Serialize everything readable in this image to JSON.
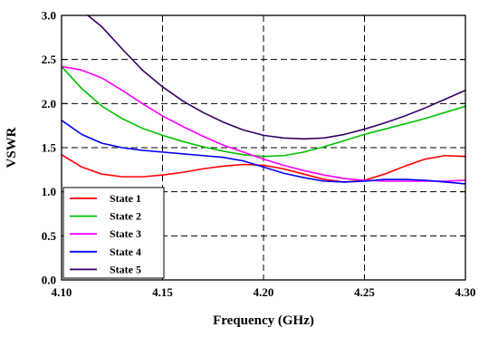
{
  "chart_data": {
    "type": "line",
    "title": "",
    "xlabel": "Frequency (GHz)",
    "ylabel": "VSWR",
    "xlim": [
      4.1,
      4.3
    ],
    "ylim": [
      0.0,
      3.0
    ],
    "x_ticks": [
      "4.10",
      "4.15",
      "4.20",
      "4.25",
      "4.30"
    ],
    "y_ticks": [
      "0.0",
      "0.5",
      "1.0",
      "1.5",
      "2.0",
      "2.5",
      "3.0"
    ],
    "grid": true,
    "legend_position": "bottom-left",
    "series": [
      {
        "name": "State 1",
        "color": "#ff0000",
        "points": [
          [
            4.1,
            1.42
          ],
          [
            4.11,
            1.28
          ],
          [
            4.12,
            1.2
          ],
          [
            4.13,
            1.17
          ],
          [
            4.14,
            1.17
          ],
          [
            4.15,
            1.19
          ],
          [
            4.16,
            1.22
          ],
          [
            4.17,
            1.26
          ],
          [
            4.18,
            1.29
          ],
          [
            4.19,
            1.31
          ],
          [
            4.2,
            1.3
          ],
          [
            4.21,
            1.26
          ],
          [
            4.22,
            1.2
          ],
          [
            4.23,
            1.14
          ],
          [
            4.24,
            1.11
          ],
          [
            4.25,
            1.13
          ],
          [
            4.26,
            1.2
          ],
          [
            4.27,
            1.29
          ],
          [
            4.28,
            1.37
          ],
          [
            4.29,
            1.41
          ],
          [
            4.3,
            1.4
          ]
        ]
      },
      {
        "name": "State 2",
        "color": "#00c000",
        "points": [
          [
            4.1,
            2.42
          ],
          [
            4.11,
            2.17
          ],
          [
            4.12,
            1.97
          ],
          [
            4.13,
            1.83
          ],
          [
            4.14,
            1.72
          ],
          [
            4.15,
            1.64
          ],
          [
            4.16,
            1.57
          ],
          [
            4.17,
            1.51
          ],
          [
            4.18,
            1.46
          ],
          [
            4.19,
            1.42
          ],
          [
            4.2,
            1.4
          ],
          [
            4.21,
            1.41
          ],
          [
            4.22,
            1.45
          ],
          [
            4.23,
            1.51
          ],
          [
            4.24,
            1.58
          ],
          [
            4.25,
            1.65
          ],
          [
            4.26,
            1.71
          ],
          [
            4.27,
            1.77
          ],
          [
            4.28,
            1.83
          ],
          [
            4.29,
            1.9
          ],
          [
            4.3,
            1.97
          ]
        ]
      },
      {
        "name": "State 3",
        "color": "#ff00ff",
        "points": [
          [
            4.1,
            2.42
          ],
          [
            4.11,
            2.38
          ],
          [
            4.12,
            2.29
          ],
          [
            4.13,
            2.15
          ],
          [
            4.14,
            2.0
          ],
          [
            4.15,
            1.86
          ],
          [
            4.16,
            1.74
          ],
          [
            4.17,
            1.63
          ],
          [
            4.18,
            1.53
          ],
          [
            4.19,
            1.45
          ],
          [
            4.2,
            1.37
          ],
          [
            4.21,
            1.3
          ],
          [
            4.22,
            1.24
          ],
          [
            4.23,
            1.19
          ],
          [
            4.24,
            1.15
          ],
          [
            4.25,
            1.13
          ],
          [
            4.26,
            1.12
          ],
          [
            4.27,
            1.12
          ],
          [
            4.28,
            1.12
          ],
          [
            4.29,
            1.12
          ],
          [
            4.3,
            1.13
          ]
        ]
      },
      {
        "name": "State 4",
        "color": "#0000ff",
        "points": [
          [
            4.1,
            1.81
          ],
          [
            4.11,
            1.65
          ],
          [
            4.12,
            1.55
          ],
          [
            4.13,
            1.5
          ],
          [
            4.14,
            1.47
          ],
          [
            4.15,
            1.45
          ],
          [
            4.16,
            1.43
          ],
          [
            4.17,
            1.41
          ],
          [
            4.18,
            1.39
          ],
          [
            4.19,
            1.35
          ],
          [
            4.2,
            1.28
          ],
          [
            4.21,
            1.21
          ],
          [
            4.22,
            1.16
          ],
          [
            4.23,
            1.12
          ],
          [
            4.24,
            1.11
          ],
          [
            4.25,
            1.12
          ],
          [
            4.26,
            1.14
          ],
          [
            4.27,
            1.14
          ],
          [
            4.28,
            1.13
          ],
          [
            4.29,
            1.11
          ],
          [
            4.3,
            1.09
          ]
        ]
      },
      {
        "name": "State 5",
        "color": "#330066",
        "points": [
          [
            4.113,
            3.0
          ],
          [
            4.12,
            2.87
          ],
          [
            4.13,
            2.62
          ],
          [
            4.14,
            2.38
          ],
          [
            4.15,
            2.19
          ],
          [
            4.16,
            2.03
          ],
          [
            4.17,
            1.9
          ],
          [
            4.18,
            1.79
          ],
          [
            4.19,
            1.7
          ],
          [
            4.2,
            1.64
          ],
          [
            4.21,
            1.61
          ],
          [
            4.22,
            1.6
          ],
          [
            4.23,
            1.61
          ],
          [
            4.24,
            1.65
          ],
          [
            4.25,
            1.71
          ],
          [
            4.26,
            1.78
          ],
          [
            4.27,
            1.86
          ],
          [
            4.28,
            1.95
          ],
          [
            4.29,
            2.05
          ],
          [
            4.3,
            2.15
          ]
        ]
      }
    ]
  }
}
